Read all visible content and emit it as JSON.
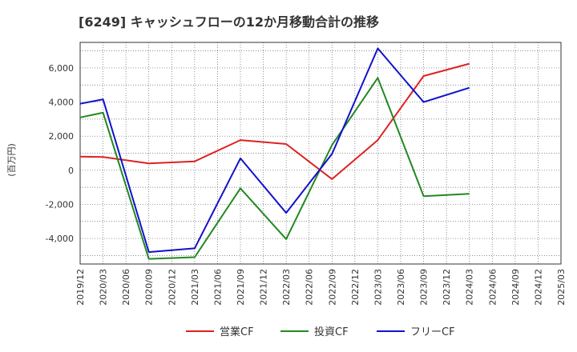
{
  "chart_data": {
    "type": "line",
    "title": "[6249]  キャッシュフローの12か月移動合計の推移",
    "ylabel": "(百万円)",
    "xlabel": "",
    "ylim": [
      -5500,
      7500
    ],
    "yticks": [
      -4000,
      -2000,
      0,
      2000,
      4000,
      6000
    ],
    "ytick_labels": [
      "-4,000",
      "-2,000",
      "0",
      "2,000",
      "4,000",
      "6,000"
    ],
    "x_tick_labels": [
      "2019/12",
      "2020/03",
      "2020/06",
      "2020/09",
      "2020/12",
      "2021/03",
      "2021/06",
      "2021/09",
      "2021/12",
      "2022/03",
      "2022/06",
      "2022/09",
      "2022/12",
      "2023/03",
      "2023/06",
      "2023/09",
      "2023/12",
      "2024/03",
      "2024/06",
      "2024/09",
      "2024/12",
      "2025/03"
    ],
    "grid": true,
    "legend_position": "bottom-center",
    "series": [
      {
        "name": "営業CF",
        "color": "#dd2222",
        "points": [
          {
            "x": "2019/12",
            "y": 800
          },
          {
            "x": "2020/03",
            "y": 780
          },
          {
            "x": "2020/09",
            "y": 400
          },
          {
            "x": "2021/03",
            "y": 520
          },
          {
            "x": "2021/09",
            "y": 1770
          },
          {
            "x": "2022/03",
            "y": 1540
          },
          {
            "x": "2022/09",
            "y": -520
          },
          {
            "x": "2023/03",
            "y": 1770
          },
          {
            "x": "2023/09",
            "y": 5530
          },
          {
            "x": "2024/03",
            "y": 6250
          }
        ]
      },
      {
        "name": "投資CF",
        "color": "#228822",
        "points": [
          {
            "x": "2019/12",
            "y": 3100
          },
          {
            "x": "2020/03",
            "y": 3380
          },
          {
            "x": "2020/09",
            "y": -5200
          },
          {
            "x": "2021/03",
            "y": -5100
          },
          {
            "x": "2021/09",
            "y": -1060
          },
          {
            "x": "2022/03",
            "y": -4040
          },
          {
            "x": "2022/09",
            "y": 1480
          },
          {
            "x": "2023/03",
            "y": 5420
          },
          {
            "x": "2023/09",
            "y": -1520
          },
          {
            "x": "2024/03",
            "y": -1380
          }
        ]
      },
      {
        "name": "フリーCF",
        "color": "#1111cc",
        "points": [
          {
            "x": "2019/12",
            "y": 3900
          },
          {
            "x": "2020/03",
            "y": 4160
          },
          {
            "x": "2020/09",
            "y": -4800
          },
          {
            "x": "2021/03",
            "y": -4580
          },
          {
            "x": "2021/09",
            "y": 700
          },
          {
            "x": "2022/03",
            "y": -2500
          },
          {
            "x": "2022/09",
            "y": 960
          },
          {
            "x": "2023/03",
            "y": 7150
          },
          {
            "x": "2023/09",
            "y": 4000
          },
          {
            "x": "2024/03",
            "y": 4840
          }
        ]
      }
    ]
  }
}
